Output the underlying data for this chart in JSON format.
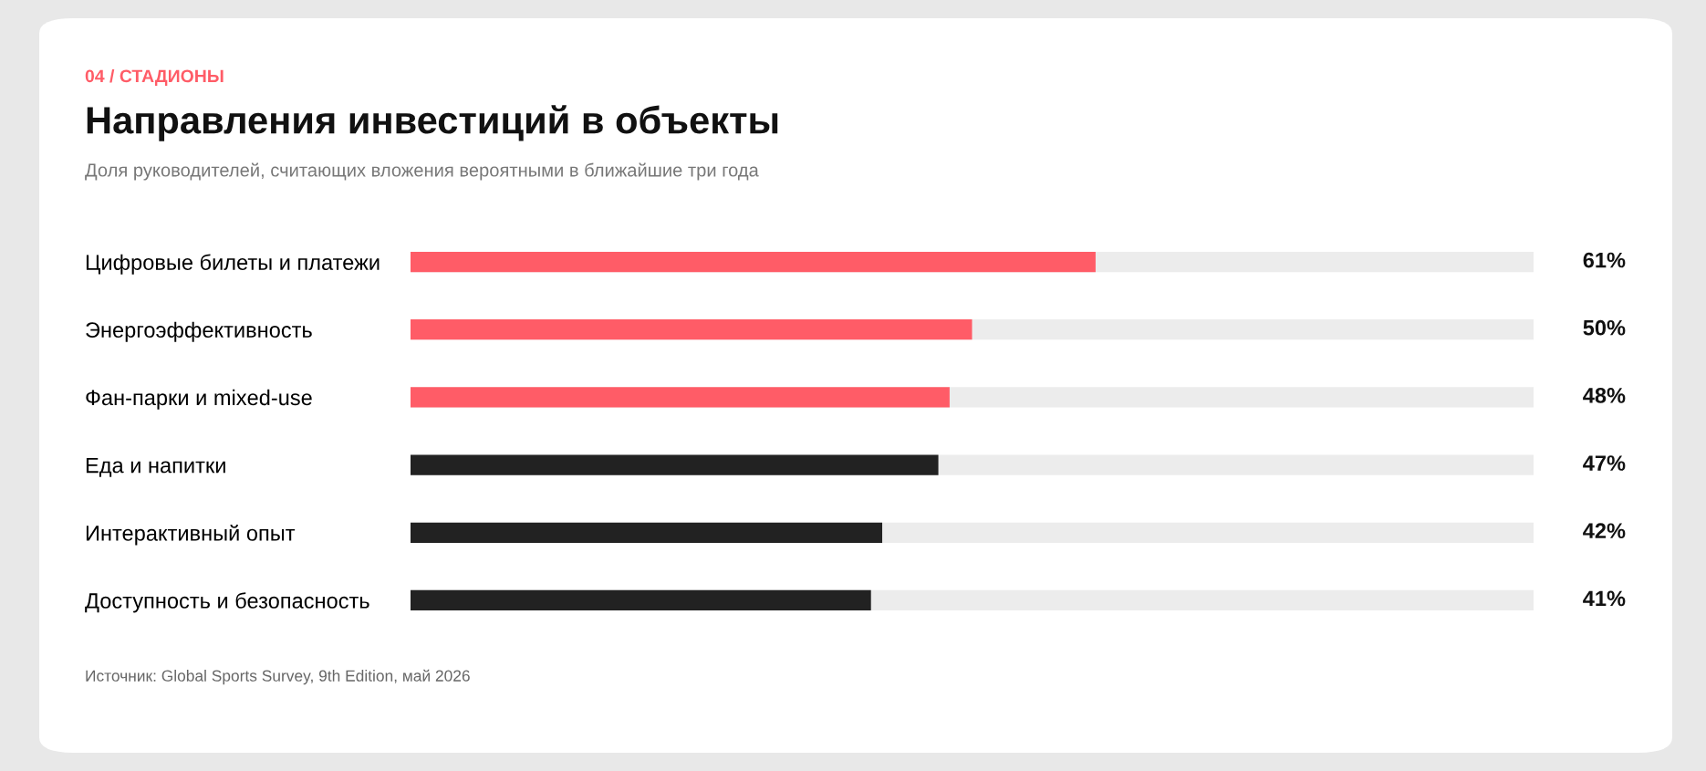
{
  "chart_data": {
    "type": "bar",
    "orientation": "horizontal",
    "subtitle": "04 / СТАДИОНЫ",
    "title": "Направления инвестиций в объекты",
    "annotations": [
      "Доля руководителей, считающих вложения вероятными в ближайшие три года",
      "Источник: Global Sports Survey, 9th Edition, май 2026"
    ],
    "categories": [
      "Цифровые билеты и платежи",
      "Энергоэффективность",
      "Фан-парки и mixed-use",
      "Еда и напитки",
      "Интерактивный опыт",
      "Доступность и безопасность"
    ],
    "values": [
      61,
      50,
      48,
      47,
      42,
      41
    ],
    "colors": [
      "#ff5c67",
      "#ff5c67",
      "#ff5c67",
      "#222222",
      "#222222",
      "#222222"
    ],
    "value_labels": [
      "61%",
      "50%",
      "48%",
      "47%",
      "42%",
      "41%"
    ],
    "xlim": [
      0,
      100
    ],
    "tick_labels": "y",
    "grid": false,
    "legend": false
  }
}
